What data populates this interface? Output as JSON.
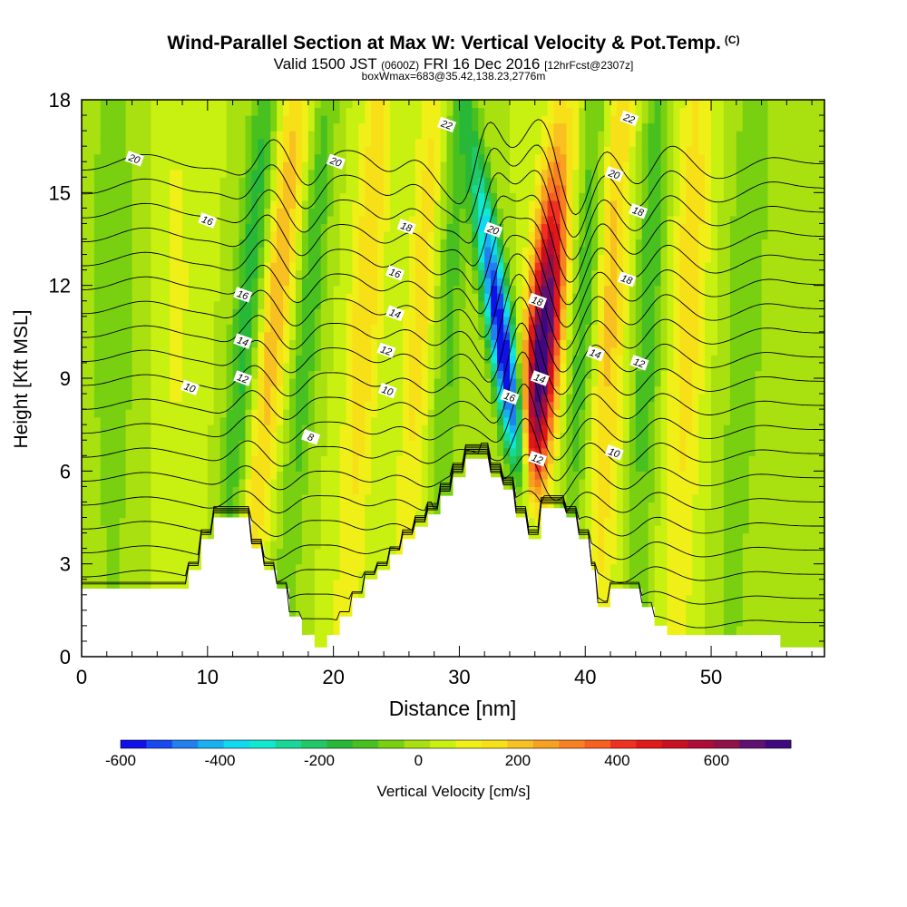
{
  "chart_data": {
    "type": "heatmap",
    "title": "Wind-Parallel Section at Max W: Vertical Velocity & Pot.Temp.",
    "title_mark": "(C)",
    "subtitle": {
      "main": "Valid 1500 JST",
      "utc": "(0600Z)",
      "date": "FRI 16 Dec 2016",
      "fcst": "[12hrFcst@2307z]"
    },
    "subtitle2": "boxWmax=683@35.42,138.23,2776m",
    "xlabel": "Distance [nm]",
    "ylabel": "Height [Kft MSL]",
    "xlim": [
      0,
      59
    ],
    "ylim": [
      0,
      18
    ],
    "x_ticks": [
      "0",
      "10",
      "20",
      "30",
      "40",
      "50"
    ],
    "y_ticks": [
      "0",
      "3",
      "6",
      "9",
      "12",
      "15",
      "18"
    ],
    "colorbar": {
      "label": "Vertical Velocity [cm/s]",
      "range": [
        -600,
        750
      ],
      "step": 50,
      "tick_labels": [
        "-600",
        "-400",
        "-200",
        "0",
        "200",
        "400",
        "600"
      ],
      "colors": [
        "#1010e8",
        "#1848f0",
        "#2080f0",
        "#18b0f0",
        "#10d8f0",
        "#10e8d0",
        "#18d898",
        "#20c868",
        "#28b838",
        "#48c020",
        "#78d010",
        "#a8e010",
        "#c8f010",
        "#f0f018",
        "#f8e018",
        "#f8c020",
        "#f8a020",
        "#f88020",
        "#f86020",
        "#f03020",
        "#e01818",
        "#c81020",
        "#b00c38",
        "#901048",
        "#601070",
        "#400880"
      ]
    },
    "wave_components": [
      {
        "center_nm": 14.8,
        "width": 1.4,
        "peak": 200,
        "lean": 0.25
      },
      {
        "center_nm": 12.8,
        "width": 1.2,
        "peak": -200,
        "lean": 0.2
      },
      {
        "center_nm": 17.6,
        "width": 1.1,
        "peak": -150,
        "lean": 0.2
      },
      {
        "center_nm": 22.2,
        "width": 1.3,
        "peak": 150,
        "lean": 0.15
      },
      {
        "center_nm": 26.6,
        "width": 1.2,
        "peak": 130,
        "lean": 0.15
      },
      {
        "center_nm": 29.0,
        "width": 1.1,
        "peak": -120,
        "lean": 0.1
      },
      {
        "center_nm": 33.8,
        "width": 1.0,
        "peak": -600,
        "lean": -0.35
      },
      {
        "center_nm": 36.4,
        "width": 1.3,
        "peak": 683,
        "lean": 0.2
      },
      {
        "center_nm": 39.6,
        "width": 1.0,
        "peak": -150,
        "lean": 0.15
      },
      {
        "center_nm": 41.8,
        "width": 1.3,
        "peak": 170,
        "lean": 0.1
      },
      {
        "center_nm": 44.8,
        "width": 1.1,
        "peak": -150,
        "lean": 0.1
      },
      {
        "center_nm": 48.0,
        "width": 1.4,
        "peak": 140,
        "lean": 0.1
      },
      {
        "center_nm": 52.5,
        "width": 1.6,
        "peak": -100,
        "lean": 0.1
      },
      {
        "center_nm": 2.5,
        "width": 2.0,
        "peak": -90,
        "lean": 0.0
      },
      {
        "center_nm": 7.5,
        "width": 1.8,
        "peak": 60,
        "lean": 0.0
      }
    ],
    "terrain_kft": [
      [
        0,
        2.2
      ],
      [
        8.5,
        2.2
      ],
      [
        8.5,
        2.8
      ],
      [
        9.5,
        2.8
      ],
      [
        9.5,
        3.8
      ],
      [
        10.5,
        3.8
      ],
      [
        10.5,
        4.5
      ],
      [
        13.5,
        4.5
      ],
      [
        13.5,
        3.5
      ],
      [
        14.5,
        3.5
      ],
      [
        14.5,
        2.8
      ],
      [
        15.5,
        2.8
      ],
      [
        15.5,
        2.2
      ],
      [
        16.5,
        2.2
      ],
      [
        16.5,
        1.3
      ],
      [
        17.5,
        1.3
      ],
      [
        17.5,
        0.7
      ],
      [
        18.5,
        0.7
      ],
      [
        18.5,
        0.3
      ],
      [
        19.5,
        0.3
      ],
      [
        19.5,
        0.7
      ],
      [
        20.5,
        0.7
      ],
      [
        20.5,
        1.3
      ],
      [
        21.5,
        1.3
      ],
      [
        21.5,
        1.9
      ],
      [
        22.5,
        1.9
      ],
      [
        22.5,
        2.5
      ],
      [
        23.5,
        2.5
      ],
      [
        23.5,
        2.8
      ],
      [
        24.5,
        2.8
      ],
      [
        24.5,
        3.3
      ],
      [
        25.5,
        3.3
      ],
      [
        25.5,
        3.8
      ],
      [
        26.5,
        3.8
      ],
      [
        26.5,
        4.2
      ],
      [
        27.5,
        4.2
      ],
      [
        27.5,
        4.6
      ],
      [
        28.5,
        4.6
      ],
      [
        28.5,
        5.2
      ],
      [
        29.5,
        5.2
      ],
      [
        29.5,
        5.8
      ],
      [
        30.5,
        5.8
      ],
      [
        30.5,
        6.4
      ],
      [
        32.5,
        6.4
      ],
      [
        32.5,
        5.8
      ],
      [
        33.5,
        5.8
      ],
      [
        33.5,
        5.4
      ],
      [
        34.5,
        5.4
      ],
      [
        34.5,
        4.5
      ],
      [
        35.5,
        4.5
      ],
      [
        35.5,
        3.8
      ],
      [
        36.5,
        3.8
      ],
      [
        36.5,
        4.8
      ],
      [
        38.5,
        4.8
      ],
      [
        38.5,
        4.5
      ],
      [
        39.5,
        4.5
      ],
      [
        39.5,
        3.8
      ],
      [
        40.5,
        3.8
      ],
      [
        40.5,
        2.8
      ],
      [
        41.0,
        2.8
      ],
      [
        41.0,
        1.6
      ],
      [
        42.0,
        1.6
      ],
      [
        42.0,
        2.2
      ],
      [
        44.5,
        2.2
      ],
      [
        44.5,
        1.6
      ],
      [
        45.5,
        1.6
      ],
      [
        45.5,
        1.0
      ],
      [
        46.5,
        1.0
      ],
      [
        46.5,
        0.7
      ],
      [
        55.5,
        0.7
      ],
      [
        55.5,
        0.3
      ],
      [
        59,
        0.3
      ]
    ],
    "theta_contours_C": [
      4,
      5,
      6,
      7,
      8,
      9,
      10,
      11,
      12,
      13,
      14,
      15,
      16,
      17,
      18,
      19,
      20,
      21,
      22,
      23
    ],
    "theta_labels": [
      {
        "text": "20",
        "x": 4.2,
        "y": 16.1
      },
      {
        "text": "16",
        "x": 10.0,
        "y": 14.1
      },
      {
        "text": "16",
        "x": 12.8,
        "y": 11.7
      },
      {
        "text": "14",
        "x": 12.8,
        "y": 10.2
      },
      {
        "text": "12",
        "x": 12.8,
        "y": 9.0
      },
      {
        "text": "10",
        "x": 8.6,
        "y": 8.7
      },
      {
        "text": "8",
        "x": 18.2,
        "y": 7.1
      },
      {
        "text": "20",
        "x": 20.2,
        "y": 16.0
      },
      {
        "text": "22",
        "x": 29.0,
        "y": 17.2
      },
      {
        "text": "18",
        "x": 25.8,
        "y": 13.9
      },
      {
        "text": "16",
        "x": 24.9,
        "y": 12.4
      },
      {
        "text": "14",
        "x": 24.9,
        "y": 11.1
      },
      {
        "text": "12",
        "x": 24.2,
        "y": 9.9
      },
      {
        "text": "10",
        "x": 24.3,
        "y": 8.6
      },
      {
        "text": "20",
        "x": 32.7,
        "y": 13.8
      },
      {
        "text": "18",
        "x": 36.2,
        "y": 11.5
      },
      {
        "text": "16",
        "x": 34.0,
        "y": 8.4
      },
      {
        "text": "14",
        "x": 36.4,
        "y": 9.0
      },
      {
        "text": "12",
        "x": 36.2,
        "y": 6.4
      },
      {
        "text": "22",
        "x": 43.5,
        "y": 17.4
      },
      {
        "text": "20",
        "x": 42.3,
        "y": 15.6
      },
      {
        "text": "18",
        "x": 44.2,
        "y": 14.4
      },
      {
        "text": "18",
        "x": 43.3,
        "y": 12.2
      },
      {
        "text": "14",
        "x": 40.8,
        "y": 9.8
      },
      {
        "text": "12",
        "x": 44.3,
        "y": 9.5
      },
      {
        "text": "10",
        "x": 42.3,
        "y": 6.6
      }
    ]
  }
}
